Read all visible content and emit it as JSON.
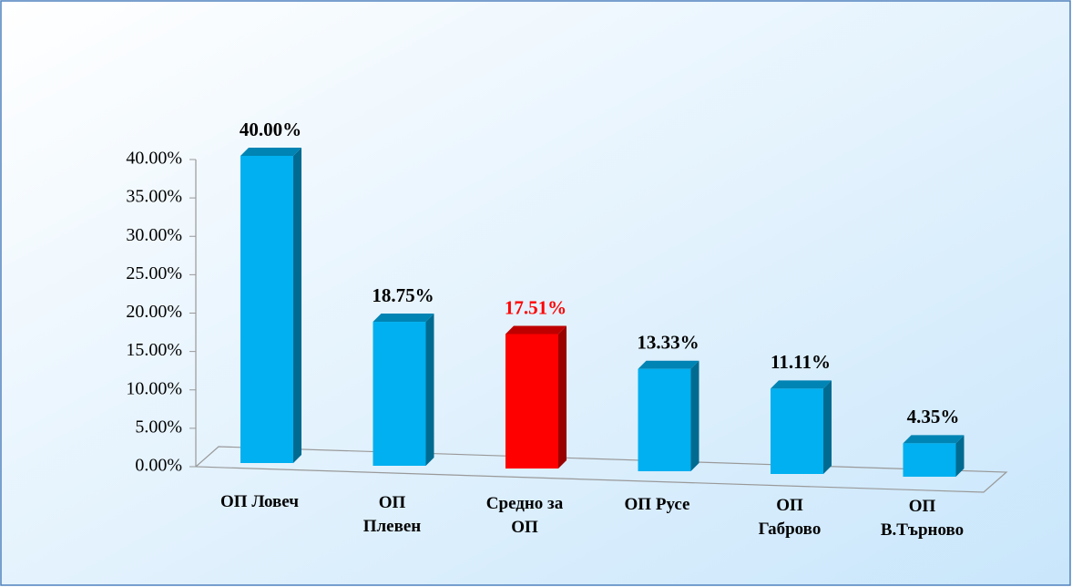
{
  "chart_data": {
    "type": "bar3d",
    "categories": [
      "ОП Ловеч",
      "ОП Плевен",
      "Средно за ОП",
      "ОП Русе",
      "ОП Габрово",
      "ОП В.Търново"
    ],
    "values": [
      40.0,
      18.75,
      17.51,
      13.33,
      11.11,
      4.35
    ],
    "value_labels": [
      "40.00%",
      "18.75%",
      "17.51%",
      "13.33%",
      "11.11%",
      "4.35%"
    ],
    "colors": [
      "#00b0f0",
      "#00b0f0",
      "#ff0000",
      "#00b0f0",
      "#00b0f0",
      "#00b0f0"
    ],
    "ylim": [
      0,
      40
    ],
    "yticks": [
      {
        "value": 0,
        "label": "0.00%"
      },
      {
        "value": 5,
        "label": "5.00%"
      },
      {
        "value": 10,
        "label": "10.00%"
      },
      {
        "value": 15,
        "label": "15.00%"
      },
      {
        "value": 20,
        "label": "20.00%"
      },
      {
        "value": 25,
        "label": "25.00%"
      },
      {
        "value": 30,
        "label": "30.00%"
      },
      {
        "value": 35,
        "label": "35.00%"
      },
      {
        "value": 40,
        "label": "40.00%"
      }
    ]
  }
}
